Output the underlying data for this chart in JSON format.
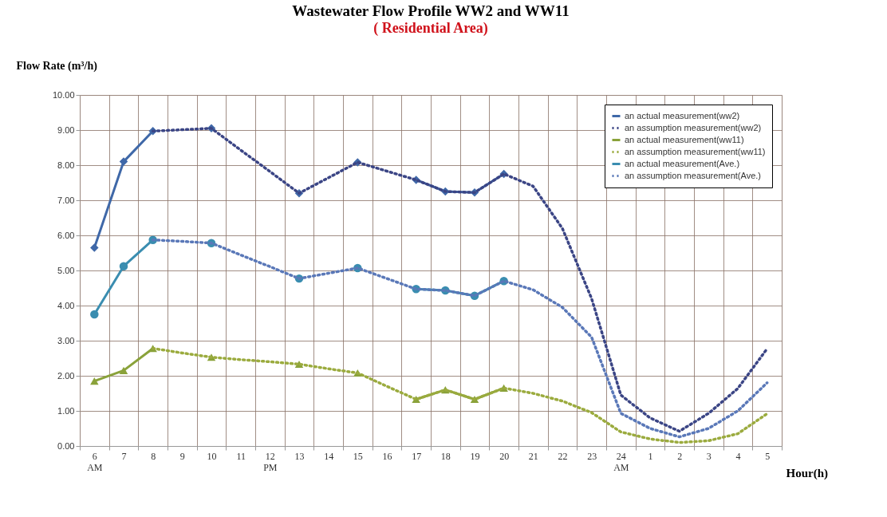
{
  "chart_data": {
    "type": "line",
    "title": "Wastewater Flow Profile WW2 and WW11",
    "subtitle": "( Residential  Area)",
    "ylabel": "Flow Rate (m³/h)",
    "xlabel": "Hour(h)",
    "categories": [
      "6\nAM",
      "7",
      "8",
      "9",
      "10",
      "11",
      "12\nPM",
      "13",
      "14",
      "15",
      "16",
      "17",
      "18",
      "19",
      "20",
      "21",
      "22",
      "23",
      "24\nAM",
      "1",
      "2",
      "3",
      "4",
      "5"
    ],
    "series": [
      {
        "name": "an actual measurement(ww2)",
        "color": "#3f68a8",
        "marker": "diamond",
        "line_style": "solid",
        "values": [
          5.65,
          8.1,
          8.97,
          null,
          9.05,
          null,
          null,
          7.2,
          null,
          8.08,
          null,
          7.58,
          7.25,
          7.22,
          7.75,
          null,
          null,
          null,
          null,
          null,
          null,
          null,
          null,
          null
        ]
      },
      {
        "name": "an assumption measurement(ww2)",
        "color": "#3b4585",
        "marker": "none",
        "line_style": "dotted",
        "values": [
          null,
          null,
          8.97,
          9.01,
          9.05,
          8.43,
          7.82,
          7.2,
          7.64,
          8.08,
          7.83,
          7.58,
          7.25,
          7.22,
          7.75,
          7.4,
          6.2,
          4.2,
          1.45,
          0.8,
          0.42,
          0.93,
          1.64,
          2.77
        ]
      },
      {
        "name": "an actual measurement(ww11)",
        "color": "#8aa23a",
        "marker": "triangle",
        "line_style": "solid",
        "values": [
          1.85,
          2.15,
          2.78,
          null,
          2.53,
          null,
          null,
          2.33,
          null,
          2.08,
          null,
          1.33,
          1.6,
          1.33,
          1.65,
          null,
          null,
          null,
          null,
          null,
          null,
          null,
          null,
          null
        ]
      },
      {
        "name": "an assumption measurement(ww11)",
        "color": "#9bab3e",
        "marker": "none",
        "line_style": "dotted",
        "values": [
          null,
          null,
          2.78,
          2.65,
          2.53,
          2.46,
          2.4,
          2.33,
          2.2,
          2.08,
          1.7,
          1.33,
          1.6,
          1.33,
          1.65,
          1.5,
          1.28,
          0.95,
          0.4,
          0.2,
          0.1,
          0.15,
          0.35,
          0.92
        ]
      },
      {
        "name": "an actual measurement(Ave.)",
        "color": "#3a8db0",
        "marker": "circle",
        "line_style": "solid",
        "values": [
          3.75,
          5.12,
          5.87,
          null,
          5.78,
          null,
          null,
          4.77,
          null,
          5.07,
          null,
          4.47,
          4.43,
          4.28,
          4.7,
          null,
          null,
          null,
          null,
          null,
          null,
          null,
          null,
          null
        ]
      },
      {
        "name": "an assumption measurement(Ave.)",
        "color": "#5a78b8",
        "marker": "none",
        "line_style": "dotted",
        "values": [
          null,
          null,
          5.87,
          5.83,
          5.78,
          5.44,
          5.11,
          4.77,
          4.92,
          5.07,
          4.77,
          4.47,
          4.43,
          4.28,
          4.7,
          4.45,
          3.95,
          3.1,
          0.93,
          0.5,
          0.26,
          0.5,
          1.0,
          1.8
        ]
      }
    ],
    "ylim": [
      0,
      10
    ],
    "yticks": [
      {
        "value": 0,
        "label": "0.00"
      },
      {
        "value": 1,
        "label": "1.00"
      },
      {
        "value": 2,
        "label": "2.00"
      },
      {
        "value": 3,
        "label": "3.00"
      },
      {
        "value": 4,
        "label": "4.00"
      },
      {
        "value": 5,
        "label": "5.00"
      },
      {
        "value": 6,
        "label": "6.00"
      },
      {
        "value": 7,
        "label": "7.00"
      },
      {
        "value": 8,
        "label": "8.00"
      },
      {
        "value": 9,
        "label": "9.00"
      },
      {
        "value": 10,
        "label": "10.00"
      }
    ],
    "grid": true,
    "legend": "top right"
  }
}
